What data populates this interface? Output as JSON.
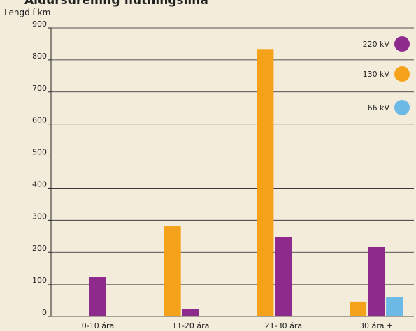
{
  "chart_data": {
    "type": "bar",
    "title": "Aldursdreifing flutningslína",
    "y_label": "Lengd í km",
    "categories": [
      "0-10 ára",
      "11-20 ára",
      "21-30 ára",
      "30 ára +"
    ],
    "series": [
      {
        "name": "220 kV",
        "color": "#8e2a8c",
        "values": [
          122,
          22,
          248,
          216
        ]
      },
      {
        "name": "130 kV",
        "color": "#f5a21b",
        "values": [
          0,
          281,
          834,
          46
        ]
      },
      {
        "name": "66 kV",
        "color": "#6db9e6",
        "values": [
          0,
          0,
          0,
          59
        ]
      }
    ],
    "ylim": [
      0,
      900
    ],
    "yticks": [
      0,
      100,
      200,
      300,
      400,
      500,
      600,
      700,
      800,
      900
    ],
    "grid": true,
    "legend": "upper right"
  }
}
